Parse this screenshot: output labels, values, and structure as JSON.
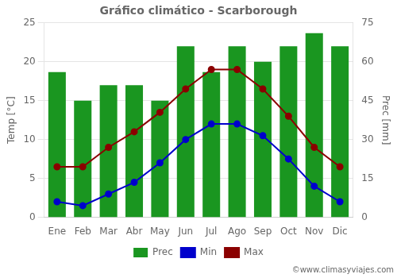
{
  "chart_data": {
    "type": "bar",
    "title": "Gráfico climático - Scarborough",
    "categories": [
      "Ene",
      "Feb",
      "Mar",
      "Abr",
      "May",
      "Jun",
      "Jul",
      "Ago",
      "Sep",
      "Oct",
      "Nov",
      "Dic"
    ],
    "series": [
      {
        "name": "Prec",
        "type": "bar",
        "color": "#1a9620",
        "axis": "y2",
        "values": [
          56,
          45,
          51,
          51,
          45,
          66,
          56,
          66,
          60,
          66,
          71,
          66
        ]
      },
      {
        "name": "Min",
        "type": "line",
        "color": "#0000cc",
        "marker": "circle",
        "line_style": "solid",
        "values": [
          2.0,
          1.5,
          3.0,
          4.5,
          7.0,
          10.0,
          12.0,
          12.0,
          10.5,
          7.5,
          4.0,
          2.0
        ]
      },
      {
        "name": "Max",
        "type": "line",
        "color": "#8b0000",
        "marker": "circle",
        "line_style": "solid",
        "values": [
          6.5,
          6.5,
          9.0,
          11.0,
          13.5,
          16.5,
          19.0,
          19.0,
          16.5,
          13.0,
          9.0,
          6.5
        ]
      }
    ],
    "ylabel": "Temp [°C]",
    "y2label": "Prec [mm]",
    "ylim": [
      0,
      25
    ],
    "yticks": [
      0,
      5,
      10,
      15,
      20,
      25
    ],
    "y2lim": [
      0,
      75
    ],
    "y2ticks": [
      0,
      15,
      30,
      45,
      60,
      75
    ],
    "grid": true,
    "legend": "bottom",
    "annotations": [
      "©www.climasyviajes.com"
    ]
  }
}
